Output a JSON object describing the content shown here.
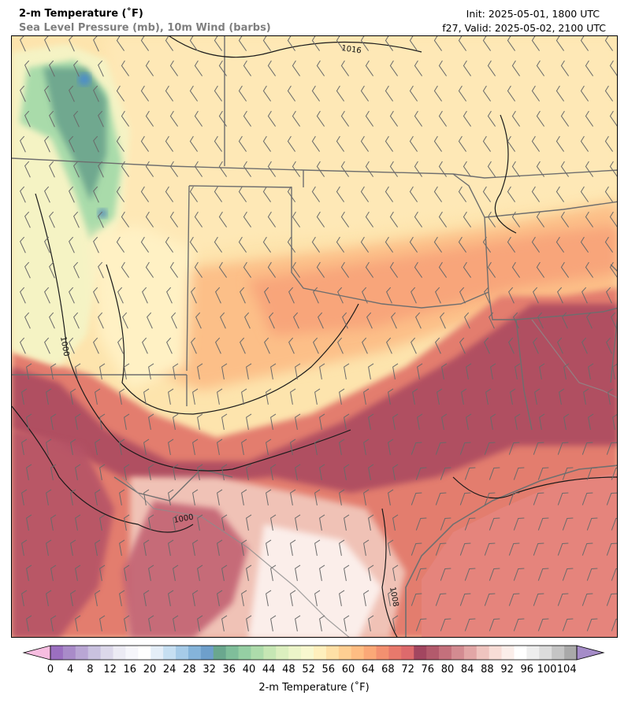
{
  "header": {
    "title": "2-m Temperature (˚F)",
    "subtitle": "Sea Level Pressure (mb), 10m Wind (barbs)",
    "init": "Init: 2025-05-01, 1800 UTC",
    "valid": "f27, Valid: 2025-05-02, 2100 UTC"
  },
  "map": {
    "isobar_labels": [
      "1016",
      "1000",
      "1000",
      "1008"
    ]
  },
  "colorbar": {
    "title": "2-m Temperature (˚F)",
    "ticks": [
      "0",
      "4",
      "8",
      "12",
      "16",
      "20",
      "24",
      "28",
      "32",
      "36",
      "40",
      "44",
      "48",
      "52",
      "56",
      "60",
      "64",
      "68",
      "72",
      "76",
      "80",
      "84",
      "88",
      "92",
      "96",
      "100",
      "104"
    ],
    "colors": [
      "#9b6fc0",
      "#a98bc9",
      "#b9a6d4",
      "#c9c1df",
      "#dcd8ea",
      "#ecebf4",
      "#f6f6fb",
      "#ffffff",
      "#e4eef8",
      "#c6dff2",
      "#a6cbe8",
      "#85b4da",
      "#6e9fcb",
      "#6aa78e",
      "#7fbe9a",
      "#95cfa3",
      "#addcab",
      "#c6e7b4",
      "#dcefbf",
      "#ecf5c9",
      "#f8f8cf",
      "#fff0bd",
      "#ffe0a6",
      "#ffcf92",
      "#ffbd83",
      "#fba877",
      "#f39070",
      "#e8796c",
      "#dd6a6c",
      "#a24660",
      "#b35a6c",
      "#c4707c",
      "#d38b91",
      "#e2a6a6",
      "#efc4bf",
      "#f8ddd7",
      "#fbeeea",
      "#ffffff",
      "#eeeeee",
      "#dcdcdc",
      "#c4c4c4",
      "#a9a9a9"
    ],
    "under_color": "#f7bde0",
    "over_color": "#a58cc8"
  }
}
